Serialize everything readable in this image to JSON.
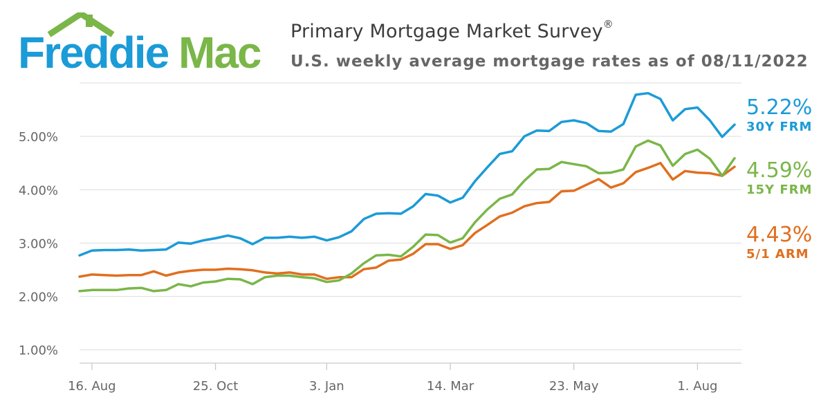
{
  "logo": {
    "text_left": "Freddie",
    "text_right": "Mac",
    "colors": {
      "blue": "#1b9bd7",
      "green": "#7ab648"
    }
  },
  "header": {
    "title": "Primary Mortgage Market Survey",
    "title_mark": "®",
    "subtitle": "U.S. weekly average mortgage rates as of 08/11/2022"
  },
  "chart_data": {
    "type": "line",
    "ylim": [
      0.75,
      6.0
    ],
    "y_ticks": [
      1,
      2,
      3,
      4,
      5
    ],
    "y_tick_labels": [
      "1.00%",
      "2.00%",
      "3.00%",
      "4.00%",
      "5.00%"
    ],
    "x_tick_labels": [
      "16. Aug",
      "25. Oct",
      "3. Jan",
      "14. Mar",
      "23. May",
      "1. Aug"
    ],
    "x_tick_index": [
      1,
      11,
      20,
      30,
      40,
      50
    ],
    "grid": true,
    "legend": "right",
    "series": [
      {
        "name": "30Y FRM",
        "latest": "5.22%",
        "color": "#1b9bd7",
        "values": [
          2.77,
          2.86,
          2.87,
          2.87,
          2.88,
          2.86,
          2.87,
          2.88,
          3.01,
          2.99,
          3.05,
          3.09,
          3.14,
          3.09,
          2.98,
          3.1,
          3.1,
          3.12,
          3.1,
          3.12,
          3.05,
          3.11,
          3.22,
          3.45,
          3.55,
          3.56,
          3.55,
          3.69,
          3.92,
          3.89,
          3.76,
          3.85,
          4.16,
          4.42,
          4.67,
          4.72,
          5.0,
          5.11,
          5.1,
          5.27,
          5.3,
          5.25,
          5.1,
          5.09,
          5.23,
          5.78,
          5.81,
          5.7,
          5.3,
          5.51,
          5.54,
          5.3,
          4.99,
          5.22
        ]
      },
      {
        "name": "15Y FRM",
        "latest": "4.59%",
        "color": "#7ab648",
        "values": [
          2.1,
          2.12,
          2.12,
          2.12,
          2.15,
          2.16,
          2.1,
          2.12,
          2.23,
          2.19,
          2.26,
          2.28,
          2.33,
          2.32,
          2.23,
          2.36,
          2.39,
          2.39,
          2.36,
          2.34,
          2.27,
          2.3,
          2.43,
          2.62,
          2.77,
          2.78,
          2.75,
          2.93,
          3.16,
          3.15,
          3.01,
          3.09,
          3.39,
          3.63,
          3.83,
          3.91,
          4.17,
          4.38,
          4.39,
          4.52,
          4.48,
          4.44,
          4.31,
          4.32,
          4.38,
          4.81,
          4.92,
          4.83,
          4.45,
          4.67,
          4.75,
          4.58,
          4.26,
          4.59
        ]
      },
      {
        "name": "5/1 ARM",
        "latest": "4.43%",
        "color": "#e06f1f",
        "values": [
          2.37,
          2.41,
          2.4,
          2.39,
          2.4,
          2.4,
          2.47,
          2.39,
          2.45,
          2.48,
          2.5,
          2.5,
          2.52,
          2.51,
          2.49,
          2.45,
          2.43,
          2.45,
          2.41,
          2.41,
          2.33,
          2.36,
          2.36,
          2.51,
          2.54,
          2.67,
          2.69,
          2.8,
          2.98,
          2.98,
          2.89,
          2.96,
          3.19,
          3.34,
          3.5,
          3.57,
          3.69,
          3.75,
          3.77,
          3.97,
          3.98,
          4.09,
          4.2,
          4.04,
          4.12,
          4.33,
          4.41,
          4.5,
          4.19,
          4.35,
          4.32,
          4.31,
          4.26,
          4.43
        ]
      }
    ]
  }
}
